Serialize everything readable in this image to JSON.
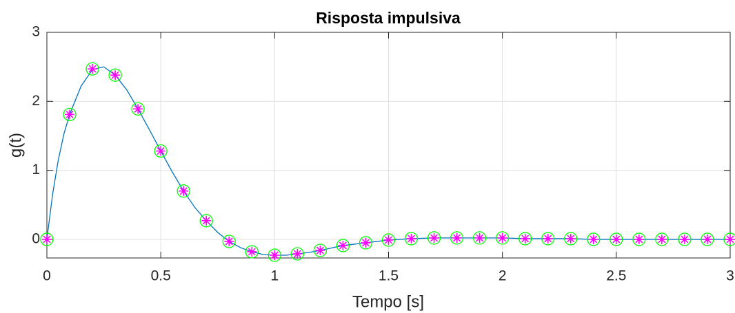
{
  "chart_data": {
    "type": "line",
    "title": "Risposta impulsiva",
    "x_label": "Tempo [s]",
    "y_label": "g(t)",
    "xlim": [
      0,
      3
    ],
    "ylim": [
      -0.27,
      3
    ],
    "xticks": [
      0,
      0.5,
      1,
      1.5,
      2,
      2.5,
      3
    ],
    "yticks": [
      0,
      1,
      2,
      3
    ],
    "grid": true,
    "series": [
      {
        "color": "#0072bd",
        "marker": "none",
        "x": [
          0,
          0.025,
          0.05,
          0.075,
          0.1,
          0.15,
          0.2,
          0.25,
          0.3,
          0.35,
          0.4,
          0.45,
          0.5,
          0.55,
          0.6,
          0.65,
          0.7,
          0.75,
          0.8,
          0.85,
          0.9,
          0.95,
          1.0,
          1.05,
          1.1,
          1.15,
          1.2,
          1.3,
          1.4,
          1.5,
          1.6,
          1.7,
          1.8,
          1.9,
          2.0,
          2.1,
          2.2,
          2.3,
          2.4,
          2.5,
          2.6,
          2.7,
          2.8,
          2.9,
          3.0
        ],
        "values": [
          0,
          0.65,
          1.15,
          1.53,
          1.81,
          2.22,
          2.46,
          2.5,
          2.38,
          2.17,
          1.89,
          1.59,
          1.28,
          0.98,
          0.7,
          0.46,
          0.27,
          0.1,
          -0.03,
          -0.12,
          -0.18,
          -0.22,
          -0.23,
          -0.23,
          -0.21,
          -0.19,
          -0.16,
          -0.09,
          -0.05,
          -0.01,
          0.01,
          0.02,
          0.02,
          0.02,
          0.02,
          0.01,
          0.01,
          0.01,
          0,
          0,
          0,
          0,
          0,
          0,
          0
        ]
      },
      {
        "color": "#00ff00",
        "marker_color": "#ff00ff",
        "marker": "circle-asterisk",
        "x": [
          0,
          0.1,
          0.2,
          0.3,
          0.4,
          0.5,
          0.6,
          0.7,
          0.8,
          0.9,
          1.0,
          1.1,
          1.2,
          1.3,
          1.4,
          1.5,
          1.6,
          1.7,
          1.8,
          1.9,
          2.0,
          2.1,
          2.2,
          2.3,
          2.4,
          2.5,
          2.6,
          2.7,
          2.8,
          2.9,
          3.0
        ],
        "values": [
          0,
          1.81,
          2.47,
          2.38,
          1.89,
          1.28,
          0.7,
          0.27,
          -0.03,
          -0.18,
          -0.23,
          -0.21,
          -0.16,
          -0.09,
          -0.05,
          -0.01,
          0.01,
          0.02,
          0.02,
          0.02,
          0.02,
          0.01,
          0.01,
          0.01,
          0,
          0,
          0,
          0,
          0,
          0,
          0
        ]
      }
    ]
  }
}
